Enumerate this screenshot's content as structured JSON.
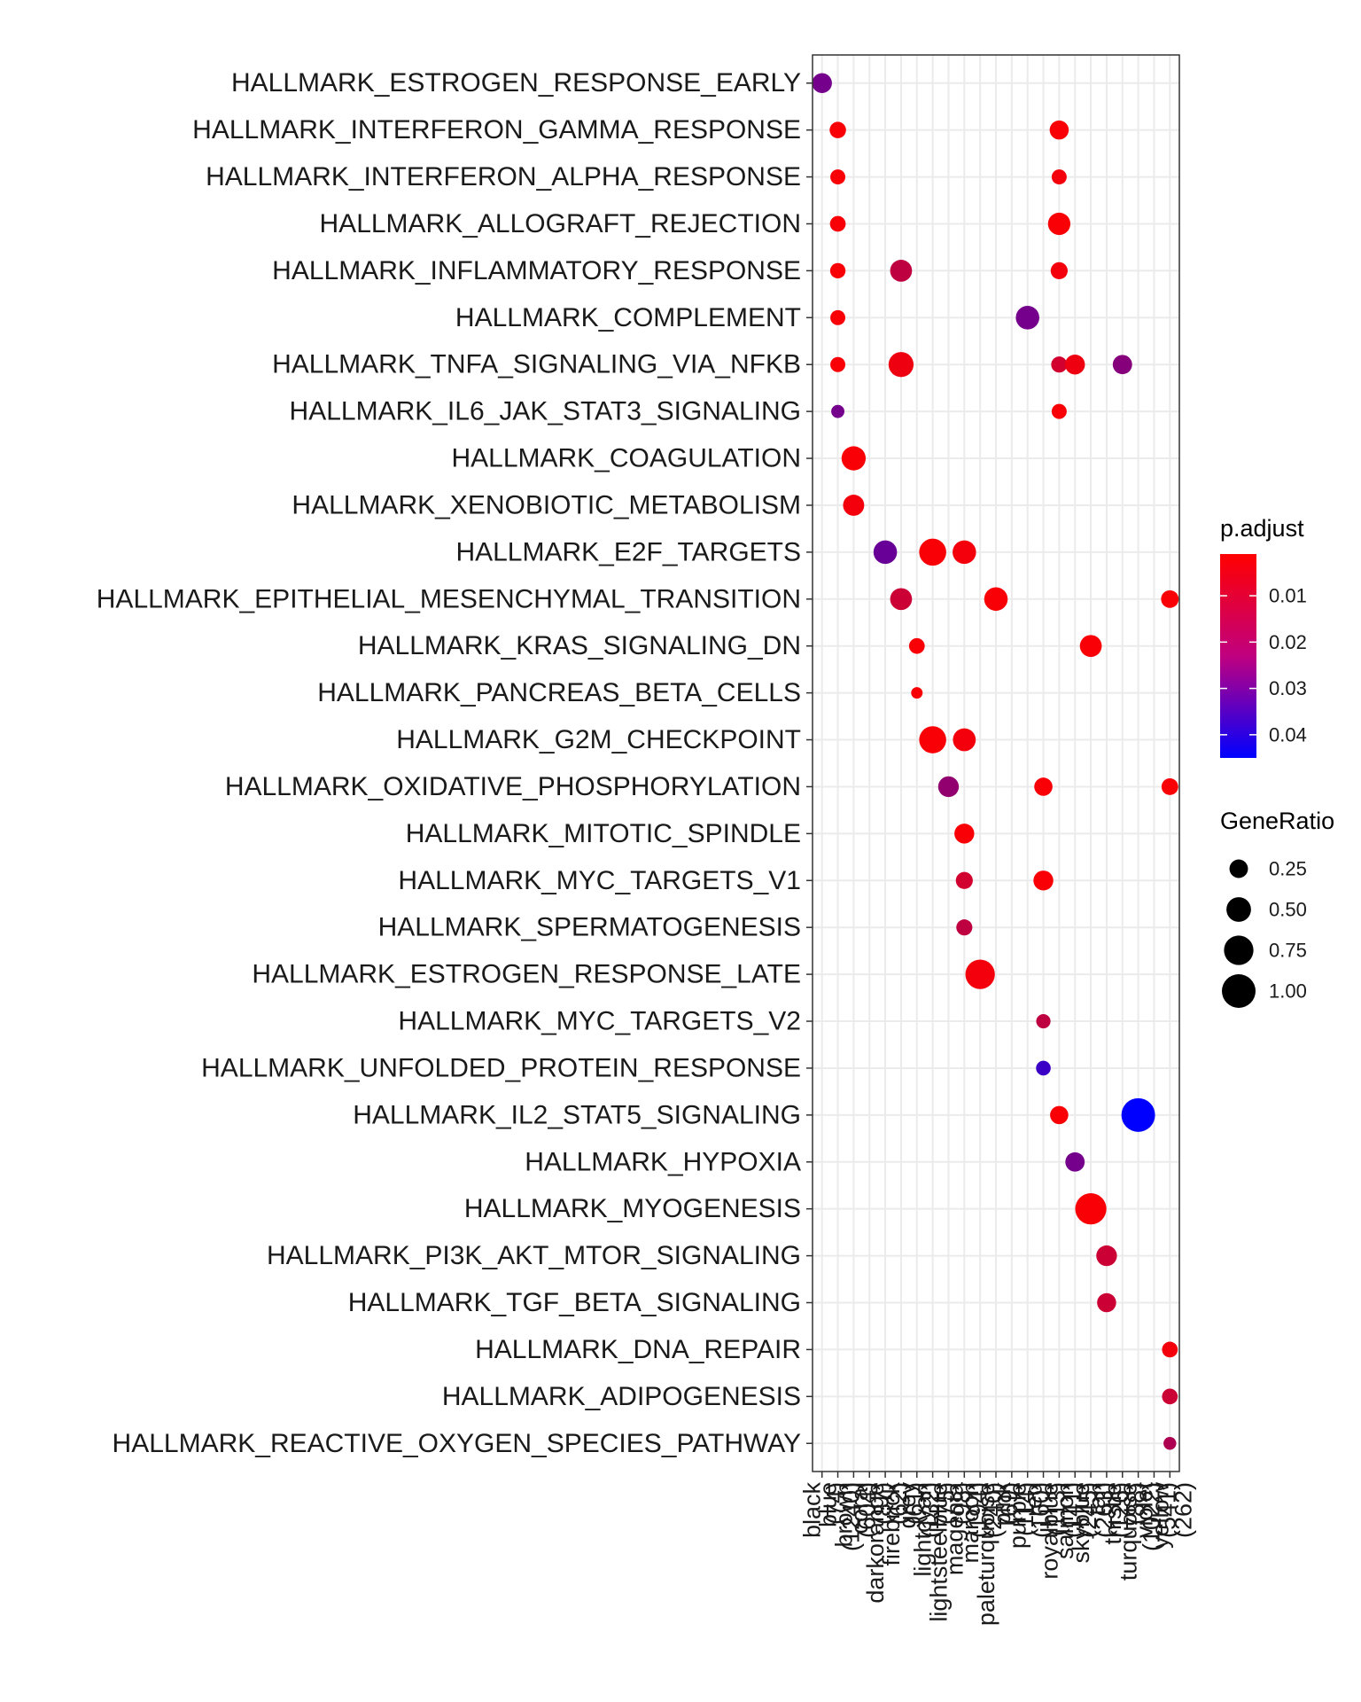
{
  "chart_data": {
    "type": "scatter",
    "title": "",
    "xlabel": "",
    "ylabel": "",
    "grid": true,
    "legend_position": "right",
    "x_categories": [
      "black",
      "blue",
      "brown",
      "coral",
      "darkorange",
      "firebrick",
      "grey",
      "lightcyan",
      "lightsteelblue",
      "magenta",
      "maroon",
      "paleturquoise",
      "pink",
      "purple",
      "red",
      "royalblue",
      "salmon",
      "skyblue",
      "tan",
      "thistle",
      "turquoise",
      "violet",
      "yellow"
    ],
    "x_tick_labels": [
      "black\n(74)",
      "blue\n(1240)",
      "brown\n(604)",
      "coral\n(87)",
      "darkorange\n(62)",
      "firebrick\n(61)",
      "grey\n(132)",
      "lightcyan\n(75)",
      "lightsteelblue\n(98)",
      "magenta\n(194)",
      "maroon\n(240)",
      "paleturquoise\n(69)",
      "pink\n(114)",
      "purple\n(160)",
      "red\n(113)",
      "royalblue\n(141)",
      "salmon\n(245)",
      "skyblue\n(263)",
      "tan\n(126)",
      "thistle\n(88)",
      "turquoise\n(1022)",
      "violet\n(541)",
      "yellow\n(262)"
    ],
    "y_categories": [
      "HALLMARK_ESTROGEN_RESPONSE_EARLY",
      "HALLMARK_INTERFERON_GAMMA_RESPONSE",
      "HALLMARK_INTERFERON_ALPHA_RESPONSE",
      "HALLMARK_ALLOGRAFT_REJECTION",
      "HALLMARK_INFLAMMATORY_RESPONSE",
      "HALLMARK_COMPLEMENT",
      "HALLMARK_TNFA_SIGNALING_VIA_NFKB",
      "HALLMARK_IL6_JAK_STAT3_SIGNALING",
      "HALLMARK_COAGULATION",
      "HALLMARK_XENOBIOTIC_METABOLISM",
      "HALLMARK_E2F_TARGETS",
      "HALLMARK_EPITHELIAL_MESENCHYMAL_TRANSITION",
      "HALLMARK_KRAS_SIGNALING_DN",
      "HALLMARK_PANCREAS_BETA_CELLS",
      "HALLMARK_G2M_CHECKPOINT",
      "HALLMARK_OXIDATIVE_PHOSPHORYLATION",
      "HALLMARK_MITOTIC_SPINDLE",
      "HALLMARK_MYC_TARGETS_V1",
      "HALLMARK_SPERMATOGENESIS",
      "HALLMARK_ESTROGEN_RESPONSE_LATE",
      "HALLMARK_MYC_TARGETS_V2",
      "HALLMARK_UNFOLDED_PROTEIN_RESPONSE",
      "HALLMARK_IL2_STAT5_SIGNALING",
      "HALLMARK_HYPOXIA",
      "HALLMARK_MYOGENESIS",
      "HALLMARK_PI3K_AKT_MTOR_SIGNALING",
      "HALLMARK_TGF_BETA_SIGNALING",
      "HALLMARK_DNA_REPAIR",
      "HALLMARK_ADIPOGENESIS",
      "HALLMARK_REACTIVE_OXYGEN_SPECIES_PATHWAY"
    ],
    "points": [
      {
        "x": "black",
        "y": "HALLMARK_ESTROGEN_RESPONSE_EARLY",
        "gene_ratio": 0.3,
        "p_adjust": 0.025
      },
      {
        "x": "blue",
        "y": "HALLMARK_INTERFERON_GAMMA_RESPONSE",
        "gene_ratio": 0.18,
        "p_adjust": 0.002
      },
      {
        "x": "blue",
        "y": "HALLMARK_INTERFERON_ALPHA_RESPONSE",
        "gene_ratio": 0.14,
        "p_adjust": 0.002
      },
      {
        "x": "blue",
        "y": "HALLMARK_ALLOGRAFT_REJECTION",
        "gene_ratio": 0.16,
        "p_adjust": 0.002
      },
      {
        "x": "blue",
        "y": "HALLMARK_INFLAMMATORY_RESPONSE",
        "gene_ratio": 0.15,
        "p_adjust": 0.002
      },
      {
        "x": "blue",
        "y": "HALLMARK_COMPLEMENT",
        "gene_ratio": 0.14,
        "p_adjust": 0.002
      },
      {
        "x": "blue",
        "y": "HALLMARK_TNFA_SIGNALING_VIA_NFKB",
        "gene_ratio": 0.14,
        "p_adjust": 0.002
      },
      {
        "x": "blue",
        "y": "HALLMARK_IL6_JAK_STAT3_SIGNALING",
        "gene_ratio": 0.09,
        "p_adjust": 0.025
      },
      {
        "x": "brown",
        "y": "HALLMARK_COAGULATION",
        "gene_ratio": 0.48,
        "p_adjust": 0.002
      },
      {
        "x": "brown",
        "y": "HALLMARK_XENOBIOTIC_METABOLISM",
        "gene_ratio": 0.35,
        "p_adjust": 0.003
      },
      {
        "x": "darkorange",
        "y": "HALLMARK_E2F_TARGETS",
        "gene_ratio": 0.45,
        "p_adjust": 0.027
      },
      {
        "x": "firebrick",
        "y": "HALLMARK_INFLAMMATORY_RESPONSE",
        "gene_ratio": 0.38,
        "p_adjust": 0.012
      },
      {
        "x": "firebrick",
        "y": "HALLMARK_TNFA_SIGNALING_VIA_NFKB",
        "gene_ratio": 0.52,
        "p_adjust": 0.004
      },
      {
        "x": "firebrick",
        "y": "HALLMARK_EPITHELIAL_MESENCHYMAL_TRANSITION",
        "gene_ratio": 0.38,
        "p_adjust": 0.01
      },
      {
        "x": "grey",
        "y": "HALLMARK_KRAS_SIGNALING_DN",
        "gene_ratio": 0.16,
        "p_adjust": 0.002
      },
      {
        "x": "grey",
        "y": "HALLMARK_PANCREAS_BETA_CELLS",
        "gene_ratio": 0.05,
        "p_adjust": 0.002
      },
      {
        "x": "lightcyan",
        "y": "HALLMARK_E2F_TARGETS",
        "gene_ratio": 0.62,
        "p_adjust": 0.002
      },
      {
        "x": "lightcyan",
        "y": "HALLMARK_G2M_CHECKPOINT",
        "gene_ratio": 0.62,
        "p_adjust": 0.002
      },
      {
        "x": "lightsteelblue",
        "y": "HALLMARK_OXIDATIVE_PHOSPHORYLATION",
        "gene_ratio": 0.33,
        "p_adjust": 0.02
      },
      {
        "x": "magenta",
        "y": "HALLMARK_E2F_TARGETS",
        "gene_ratio": 0.45,
        "p_adjust": 0.003
      },
      {
        "x": "magenta",
        "y": "HALLMARK_G2M_CHECKPOINT",
        "gene_ratio": 0.42,
        "p_adjust": 0.003
      },
      {
        "x": "magenta",
        "y": "HALLMARK_MITOTIC_SPINDLE",
        "gene_ratio": 0.3,
        "p_adjust": 0.002
      },
      {
        "x": "magenta",
        "y": "HALLMARK_MYC_TARGETS_V1",
        "gene_ratio": 0.2,
        "p_adjust": 0.009
      },
      {
        "x": "magenta",
        "y": "HALLMARK_SPERMATOGENESIS",
        "gene_ratio": 0.17,
        "p_adjust": 0.012
      },
      {
        "x": "maroon",
        "y": "HALLMARK_ESTROGEN_RESPONSE_LATE",
        "gene_ratio": 0.75,
        "p_adjust": 0.003
      },
      {
        "x": "paleturquoise",
        "y": "HALLMARK_EPITHELIAL_MESENCHYMAL_TRANSITION",
        "gene_ratio": 0.45,
        "p_adjust": 0.002
      },
      {
        "x": "purple",
        "y": "HALLMARK_COMPLEMENT",
        "gene_ratio": 0.45,
        "p_adjust": 0.025
      },
      {
        "x": "red",
        "y": "HALLMARK_OXIDATIVE_PHOSPHORYLATION",
        "gene_ratio": 0.24,
        "p_adjust": 0.002
      },
      {
        "x": "red",
        "y": "HALLMARK_MYC_TARGETS_V1",
        "gene_ratio": 0.3,
        "p_adjust": 0.002
      },
      {
        "x": "red",
        "y": "HALLMARK_MYC_TARGETS_V2",
        "gene_ratio": 0.12,
        "p_adjust": 0.012
      },
      {
        "x": "red",
        "y": "HALLMARK_UNFOLDED_PROTEIN_RESPONSE",
        "gene_ratio": 0.13,
        "p_adjust": 0.035
      },
      {
        "x": "royalblue",
        "y": "HALLMARK_INTERFERON_GAMMA_RESPONSE",
        "gene_ratio": 0.27,
        "p_adjust": 0.002
      },
      {
        "x": "royalblue",
        "y": "HALLMARK_INTERFERON_ALPHA_RESPONSE",
        "gene_ratio": 0.14,
        "p_adjust": 0.003
      },
      {
        "x": "royalblue",
        "y": "HALLMARK_ALLOGRAFT_REJECTION",
        "gene_ratio": 0.4,
        "p_adjust": 0.002
      },
      {
        "x": "royalblue",
        "y": "HALLMARK_INFLAMMATORY_RESPONSE",
        "gene_ratio": 0.2,
        "p_adjust": 0.003
      },
      {
        "x": "royalblue",
        "y": "HALLMARK_TNFA_SIGNALING_VIA_NFKB",
        "gene_ratio": 0.17,
        "p_adjust": 0.009
      },
      {
        "x": "royalblue",
        "y": "HALLMARK_IL6_JAK_STAT3_SIGNALING",
        "gene_ratio": 0.14,
        "p_adjust": 0.002
      },
      {
        "x": "royalblue",
        "y": "HALLMARK_IL2_STAT5_SIGNALING",
        "gene_ratio": 0.24,
        "p_adjust": 0.002
      },
      {
        "x": "salmon",
        "y": "HALLMARK_TNFA_SIGNALING_VIA_NFKB",
        "gene_ratio": 0.3,
        "p_adjust": 0.004
      },
      {
        "x": "salmon",
        "y": "HALLMARK_HYPOXIA",
        "gene_ratio": 0.28,
        "p_adjust": 0.025
      },
      {
        "x": "skyblue",
        "y": "HALLMARK_KRAS_SIGNALING_DN",
        "gene_ratio": 0.38,
        "p_adjust": 0.002
      },
      {
        "x": "skyblue",
        "y": "HALLMARK_MYOGENESIS",
        "gene_ratio": 0.85,
        "p_adjust": 0.002
      },
      {
        "x": "tan",
        "y": "HALLMARK_PI3K_AKT_MTOR_SIGNALING",
        "gene_ratio": 0.33,
        "p_adjust": 0.01
      },
      {
        "x": "tan",
        "y": "HALLMARK_TGF_BETA_SIGNALING",
        "gene_ratio": 0.27,
        "p_adjust": 0.01
      },
      {
        "x": "thistle",
        "y": "HALLMARK_TNFA_SIGNALING_VIA_NFKB",
        "gene_ratio": 0.28,
        "p_adjust": 0.022
      },
      {
        "x": "turquoise",
        "y": "HALLMARK_IL2_STAT5_SIGNALING",
        "gene_ratio": 1.0,
        "p_adjust": 0.045
      },
      {
        "x": "yellow",
        "y": "HALLMARK_EPITHELIAL_MESENCHYMAL_TRANSITION",
        "gene_ratio": 0.22,
        "p_adjust": 0.002
      },
      {
        "x": "yellow",
        "y": "HALLMARK_OXIDATIVE_PHOSPHORYLATION",
        "gene_ratio": 0.19,
        "p_adjust": 0.002
      },
      {
        "x": "yellow",
        "y": "HALLMARK_DNA_REPAIR",
        "gene_ratio": 0.16,
        "p_adjust": 0.003
      },
      {
        "x": "yellow",
        "y": "HALLMARK_ADIPOGENESIS",
        "gene_ratio": 0.16,
        "p_adjust": 0.01
      },
      {
        "x": "yellow",
        "y": "HALLMARK_REACTIVE_OXYGEN_SPECIES_PATHWAY",
        "gene_ratio": 0.08,
        "p_adjust": 0.015
      }
    ],
    "color_legend": {
      "title": "p.adjust",
      "ticks": [
        0.01,
        0.02,
        0.03,
        0.04
      ],
      "tick_labels": [
        "0.01",
        "0.02",
        "0.03",
        "0.04"
      ],
      "range": [
        0.001,
        0.045
      ],
      "low_color": "#ff0000",
      "high_color": "#0000ff"
    },
    "size_legend": {
      "title": "GeneRatio",
      "values": [
        0.25,
        0.5,
        0.75,
        1.0
      ],
      "labels": [
        "0.25",
        "0.50",
        "0.75",
        "1.00"
      ]
    }
  }
}
